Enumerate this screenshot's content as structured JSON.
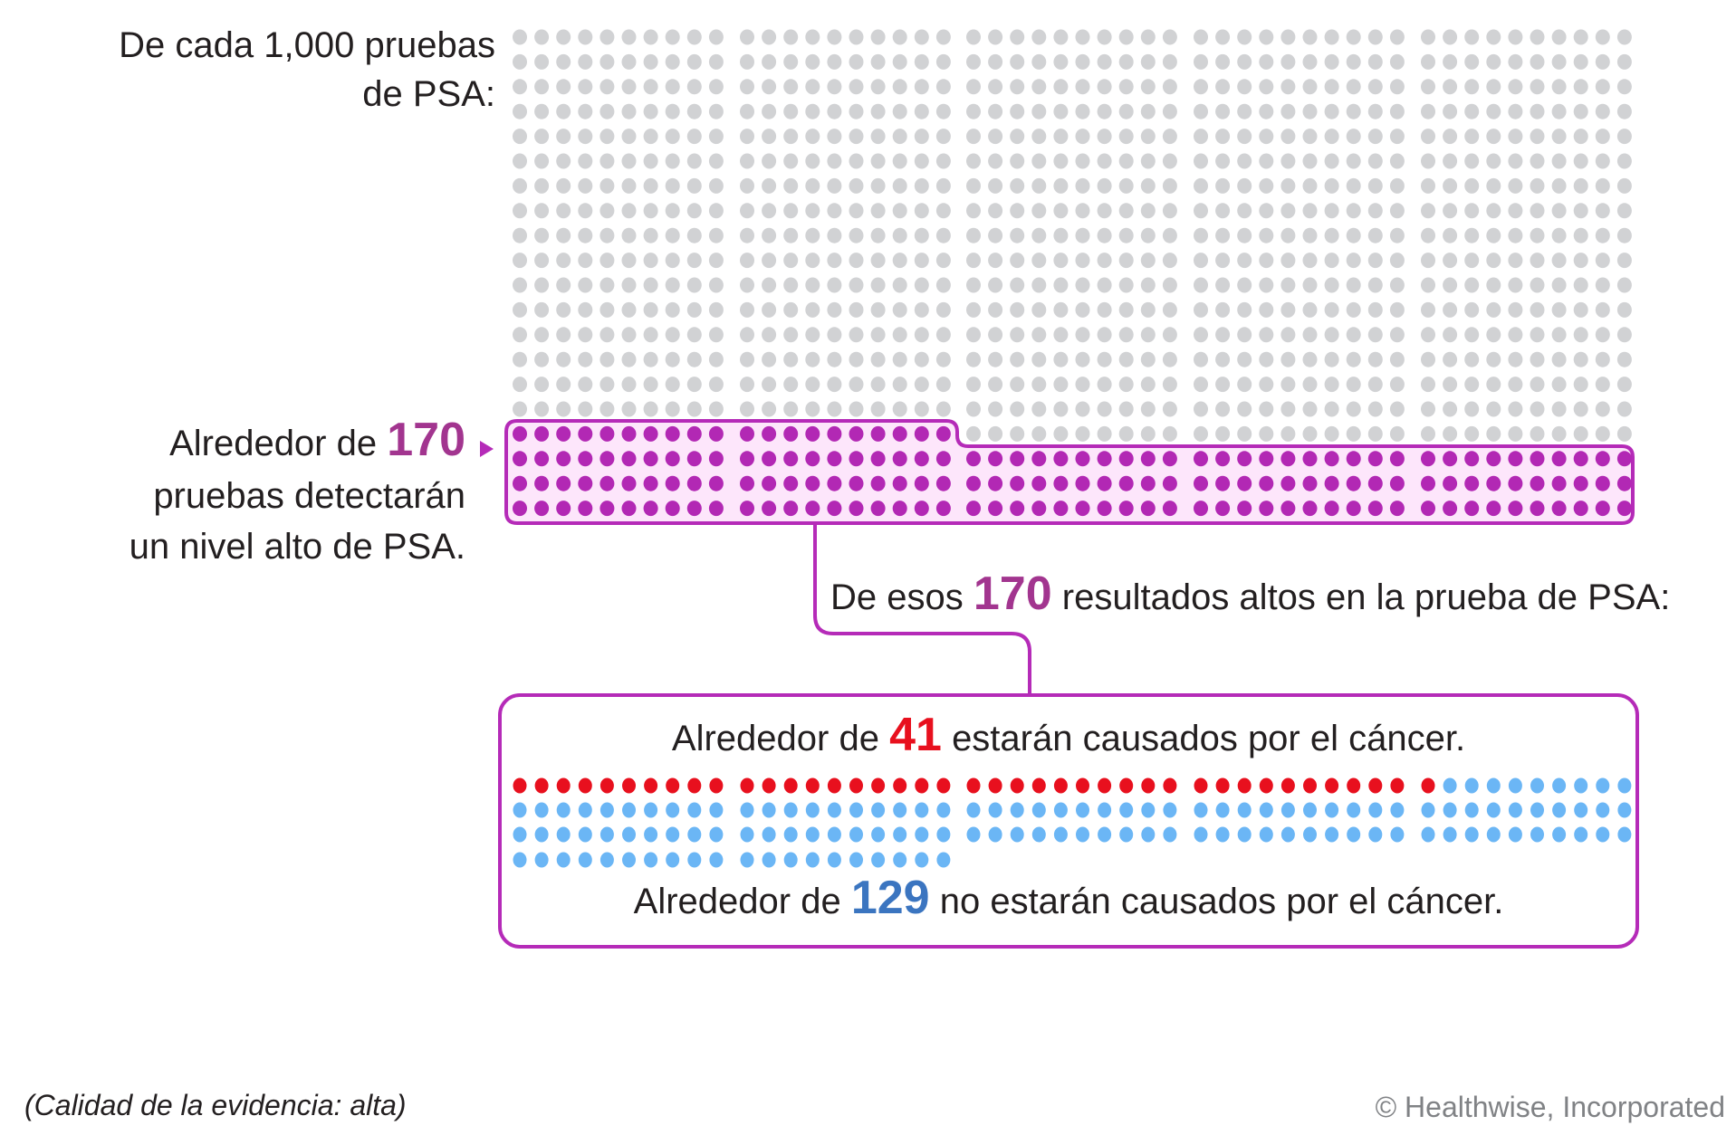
{
  "intro": {
    "line1": "De cada 1,000 pruebas",
    "line2": "de PSA:"
  },
  "high": {
    "prefix": "Alrededor de",
    "number": "170",
    "line2": "pruebas detectarán",
    "line3": "un nivel alto de PSA."
  },
  "of_those": {
    "prefix": "De esos",
    "number": "170",
    "suffix": "resultados altos en la prueba de PSA:"
  },
  "cancer": {
    "prefix": "Alrededor de",
    "number": "41",
    "suffix": "estarán causados por el cáncer."
  },
  "no_cancer": {
    "prefix": "Alrededor de",
    "number": "129",
    "suffix": "no estarán causados por el cáncer."
  },
  "footer": {
    "evidence": "(Calidad de la evidencia: alta)",
    "copyright": "© Healthwise, Incorporated"
  },
  "colors": {
    "gray": "#d1d2d4",
    "purple": "#b228b4",
    "box_fill": "#fde6fb",
    "red": "#e8101e",
    "blue": "#6bb6f5"
  },
  "chart_data": {
    "type": "pictograph",
    "total": 1000,
    "high_psa": 170,
    "caused_by_cancer": 41,
    "not_caused_by_cancer": 129
  }
}
